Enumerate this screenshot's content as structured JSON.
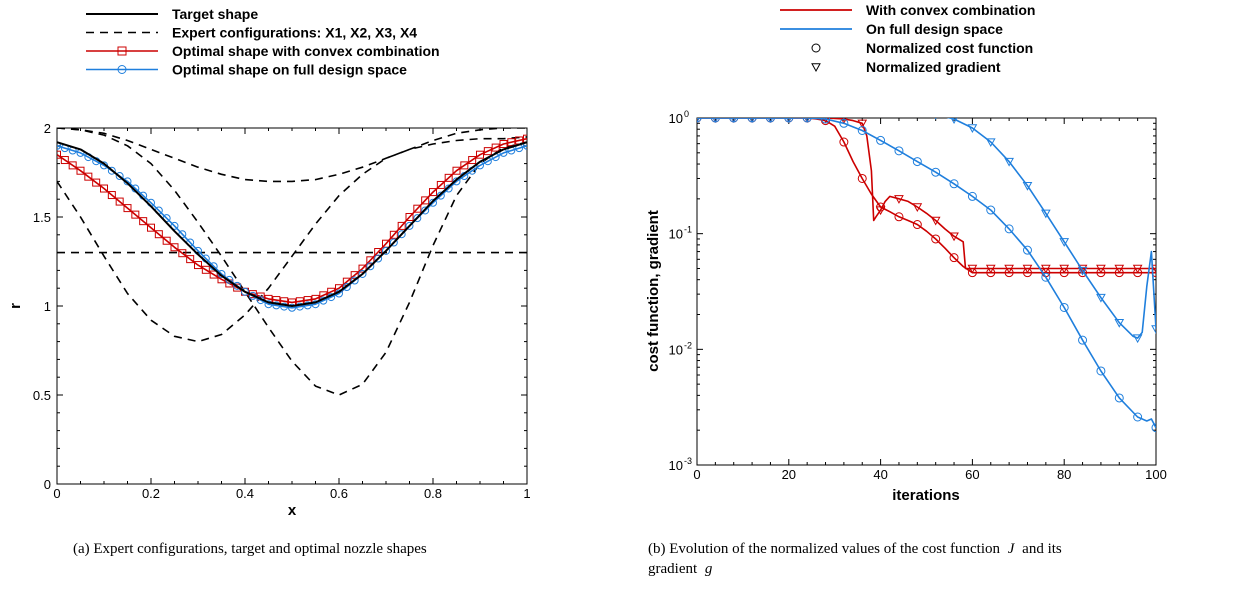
{
  "chart_data": [
    {
      "type": "line",
      "xlabel": "x",
      "ylabel": "r",
      "xlim": [
        0,
        1
      ],
      "ylim": [
        0,
        2
      ],
      "x_ticks": [
        "0",
        "0.2",
        "0.4",
        "0.6",
        "0.8",
        "1"
      ],
      "y_ticks": [
        "0",
        "0.5",
        "1",
        "1.5",
        "2"
      ],
      "legend": [
        "Target shape",
        "Expert configurations: X1, X2, X3, X4",
        "Optimal shape with convex combination",
        "Optimal shape on full design space"
      ],
      "legend_placement": "top",
      "caption": "(a) Expert configurations, target and optimal nozzle shapes",
      "series": [
        {
          "name": "Target shape",
          "style": "solid",
          "color": "#000000",
          "x": [
            0,
            0.05,
            0.1,
            0.15,
            0.2,
            0.25,
            0.3,
            0.35,
            0.4,
            0.45,
            0.5,
            0.55,
            0.6,
            0.65,
            0.7,
            0.75,
            0.8,
            0.85,
            0.9,
            0.95,
            1.0
          ],
          "y": [
            1.92,
            1.88,
            1.8,
            1.69,
            1.56,
            1.42,
            1.29,
            1.17,
            1.08,
            1.02,
            1.0,
            1.02,
            1.08,
            1.18,
            1.31,
            1.45,
            1.59,
            1.71,
            1.81,
            1.88,
            1.92
          ]
        },
        {
          "name": "X1",
          "style": "dashed",
          "color": "#000000",
          "x": [
            0,
            0.1,
            0.2,
            0.3,
            0.4,
            0.5,
            0.6,
            0.7,
            0.8,
            0.9,
            1.0
          ],
          "y": [
            1.3,
            1.3,
            1.3,
            1.3,
            1.3,
            1.3,
            1.3,
            1.3,
            1.3,
            1.3,
            1.3
          ]
        },
        {
          "name": "X2",
          "style": "dashed",
          "color": "#000000",
          "x": [
            0,
            0.05,
            0.1,
            0.15,
            0.2,
            0.25,
            0.3,
            0.35,
            0.4,
            0.45,
            0.5,
            0.55,
            0.6,
            0.65,
            0.7,
            0.75,
            0.8,
            0.85,
            0.9,
            0.95,
            1.0
          ],
          "y": [
            2.0,
            1.99,
            1.97,
            1.93,
            1.88,
            1.83,
            1.78,
            1.74,
            1.71,
            1.7,
            1.7,
            1.71,
            1.74,
            1.78,
            1.83,
            1.88,
            1.93,
            1.97,
            1.99,
            2.0,
            2.0
          ]
        },
        {
          "name": "X3",
          "style": "dashed",
          "color": "#000000",
          "x": [
            0,
            0.05,
            0.1,
            0.15,
            0.2,
            0.25,
            0.3,
            0.35,
            0.4,
            0.45,
            0.5,
            0.55,
            0.6,
            0.65,
            0.7,
            0.75,
            0.8,
            0.85,
            0.9,
            0.95,
            1.0
          ],
          "y": [
            1.7,
            1.5,
            1.28,
            1.07,
            0.92,
            0.83,
            0.8,
            0.84,
            0.95,
            1.1,
            1.28,
            1.46,
            1.62,
            1.74,
            1.83,
            1.88,
            1.91,
            1.93,
            1.94,
            1.94,
            1.95
          ]
        },
        {
          "name": "X4",
          "style": "dashed",
          "color": "#000000",
          "x": [
            0,
            0.05,
            0.1,
            0.15,
            0.2,
            0.25,
            0.3,
            0.35,
            0.4,
            0.45,
            0.5,
            0.55,
            0.6,
            0.65,
            0.7,
            0.75,
            0.8,
            0.85,
            0.9,
            0.95,
            1.0
          ],
          "y": [
            2.0,
            1.99,
            1.96,
            1.9,
            1.8,
            1.65,
            1.47,
            1.28,
            1.08,
            0.88,
            0.69,
            0.55,
            0.5,
            0.56,
            0.74,
            1.02,
            1.34,
            1.62,
            1.8,
            1.89,
            1.92
          ]
        },
        {
          "name": "Optimal shape with convex combination",
          "style": "solid",
          "marker": "square",
          "color": "#cc0000",
          "x": [
            0,
            0.05,
            0.1,
            0.15,
            0.2,
            0.25,
            0.3,
            0.35,
            0.4,
            0.45,
            0.5,
            0.55,
            0.6,
            0.65,
            0.7,
            0.75,
            0.8,
            0.85,
            0.9,
            0.95,
            1.0
          ],
          "y": [
            1.85,
            1.76,
            1.66,
            1.55,
            1.44,
            1.33,
            1.23,
            1.15,
            1.08,
            1.04,
            1.02,
            1.04,
            1.1,
            1.21,
            1.35,
            1.5,
            1.64,
            1.76,
            1.85,
            1.91,
            1.94
          ]
        },
        {
          "name": "Optimal shape on full design space",
          "style": "solid",
          "marker": "circle",
          "color": "#1f7fdd",
          "x": [
            0,
            0.05,
            0.1,
            0.15,
            0.2,
            0.25,
            0.3,
            0.35,
            0.4,
            0.45,
            0.5,
            0.55,
            0.6,
            0.65,
            0.7,
            0.75,
            0.8,
            0.85,
            0.9,
            0.95,
            1.0
          ],
          "y": [
            1.9,
            1.86,
            1.79,
            1.7,
            1.58,
            1.45,
            1.31,
            1.18,
            1.08,
            1.01,
            0.99,
            1.01,
            1.07,
            1.18,
            1.31,
            1.45,
            1.58,
            1.7,
            1.79,
            1.86,
            1.9
          ]
        }
      ]
    },
    {
      "type": "line",
      "xlabel": "iterations",
      "ylabel": "cost function, gradient",
      "xlim": [
        0,
        100
      ],
      "ylim": [
        0.001,
        1
      ],
      "yscale": "log",
      "x_ticks": [
        "0",
        "20",
        "40",
        "60",
        "80",
        "100"
      ],
      "y_ticks": [
        {
          "base": "10",
          "exp": "0",
          "v": 1
        },
        {
          "base": "10",
          "exp": "-1",
          "v": 0.1
        },
        {
          "base": "10",
          "exp": "-2",
          "v": 0.01
        },
        {
          "base": "10",
          "exp": "-3",
          "v": 0.001
        }
      ],
      "legend": [
        "With convex combination",
        "On full design space",
        "Normalized cost function",
        "Normalized gradient"
      ],
      "legend_placement": "top",
      "caption_line1": "(b) Evolution of the normalized values of the cost function",
      "caption_J": "J",
      "caption_mid": "and its",
      "caption_line2": "gradient",
      "caption_g": "g",
      "series": [
        {
          "name": "With convex combination — Normalized cost function",
          "color": "#cc0000",
          "marker": "circle",
          "x": [
            0,
            4,
            8,
            12,
            16,
            20,
            24,
            26,
            28,
            30,
            32,
            34,
            36,
            38,
            40,
            42,
            44,
            46,
            48,
            50,
            52,
            54,
            56,
            58,
            60,
            62,
            64,
            68,
            72,
            76,
            80,
            84,
            88,
            92,
            96,
            100
          ],
          "y": [
            1,
            1,
            1,
            1,
            1,
            1,
            1,
            0.98,
            0.95,
            0.85,
            0.62,
            0.42,
            0.3,
            0.22,
            0.17,
            0.155,
            0.14,
            0.13,
            0.12,
            0.105,
            0.09,
            0.075,
            0.062,
            0.052,
            0.046,
            0.046,
            0.046,
            0.046,
            0.046,
            0.046,
            0.046,
            0.046,
            0.046,
            0.046,
            0.046,
            0.046
          ],
          "marker_x": [
            0,
            4,
            8,
            12,
            16,
            20,
            24,
            28,
            32,
            36,
            40,
            44,
            48,
            52,
            56,
            60,
            64,
            68,
            72,
            76,
            80,
            84,
            88,
            92,
            96,
            100
          ]
        },
        {
          "name": "With convex combination — Normalized gradient",
          "color": "#cc0000",
          "marker": "triangle",
          "x": [
            0,
            4,
            8,
            12,
            16,
            20,
            24,
            28,
            32,
            34,
            36,
            37,
            38,
            38.5,
            39,
            40,
            41,
            42,
            44,
            46,
            48,
            50,
            52,
            54,
            56,
            58,
            58.5,
            60,
            64,
            68,
            72,
            76,
            80,
            84,
            88,
            92,
            96,
            100
          ],
          "y": [
            1,
            1,
            1,
            1,
            1,
            1,
            1,
            1,
            0.98,
            0.95,
            0.9,
            0.7,
            0.35,
            0.13,
            0.14,
            0.16,
            0.19,
            0.21,
            0.2,
            0.19,
            0.17,
            0.15,
            0.13,
            0.11,
            0.095,
            0.085,
            0.05,
            0.05,
            0.05,
            0.05,
            0.05,
            0.05,
            0.05,
            0.05,
            0.05,
            0.05,
            0.05,
            0.05
          ],
          "marker_x": [
            0,
            4,
            8,
            12,
            16,
            20,
            24,
            28,
            32,
            36,
            40,
            44,
            48,
            52,
            56,
            60,
            64,
            68,
            72,
            76,
            80,
            84,
            88,
            92,
            96,
            100
          ]
        },
        {
          "name": "On full design space — Normalized cost function",
          "color": "#1f7fdd",
          "marker": "circle",
          "x": [
            0,
            4,
            8,
            12,
            16,
            20,
            24,
            28,
            32,
            36,
            40,
            44,
            48,
            52,
            56,
            60,
            64,
            68,
            72,
            76,
            80,
            84,
            88,
            92,
            96,
            98,
            99,
            100
          ],
          "y": [
            1,
            1,
            1,
            1,
            1,
            1,
            1,
            0.98,
            0.9,
            0.78,
            0.64,
            0.52,
            0.42,
            0.34,
            0.27,
            0.21,
            0.16,
            0.11,
            0.072,
            0.042,
            0.023,
            0.012,
            0.0065,
            0.0038,
            0.0026,
            0.0024,
            0.0025,
            0.0021
          ],
          "marker_x": [
            0,
            4,
            8,
            12,
            16,
            20,
            24,
            28,
            32,
            36,
            40,
            44,
            48,
            52,
            56,
            60,
            64,
            68,
            72,
            76,
            80,
            84,
            88,
            92,
            96,
            100
          ]
        },
        {
          "name": "On full design space — Normalized gradient",
          "color": "#1f7fdd",
          "marker": "triangle",
          "x": [
            0,
            4,
            8,
            12,
            16,
            20,
            24,
            28,
            32,
            36,
            40,
            44,
            48,
            52,
            56,
            60,
            64,
            68,
            72,
            76,
            80,
            84,
            88,
            92,
            95,
            96,
            97,
            98,
            99,
            100
          ],
          "y": [
            1,
            1,
            1,
            1,
            1,
            1,
            1.01,
            1.04,
            1.08,
            1.1,
            1.11,
            1.11,
            1.1,
            1.07,
            0.98,
            0.82,
            0.62,
            0.42,
            0.26,
            0.15,
            0.085,
            0.048,
            0.028,
            0.017,
            0.013,
            0.0125,
            0.014,
            0.035,
            0.07,
            0.015
          ],
          "marker_x": [
            0,
            4,
            8,
            12,
            16,
            20,
            24,
            28,
            32,
            36,
            40,
            44,
            48,
            52,
            56,
            60,
            64,
            68,
            72,
            76,
            80,
            84,
            88,
            92,
            96,
            100
          ]
        }
      ]
    }
  ]
}
